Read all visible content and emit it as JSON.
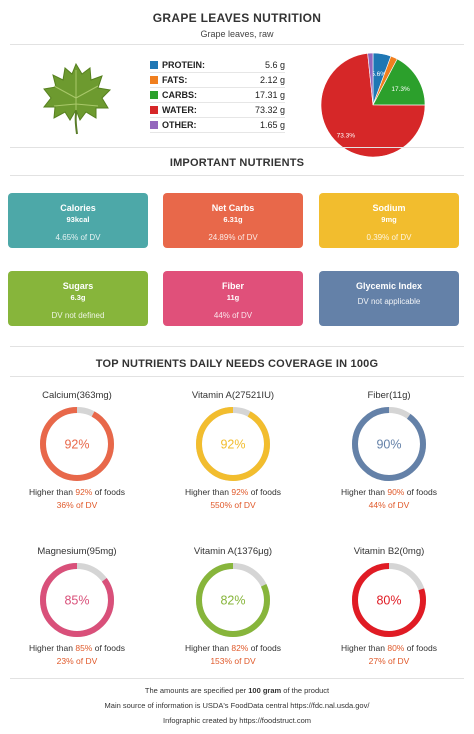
{
  "header": {
    "title": "GRAPE LEAVES NUTRITION",
    "subtitle": "Grape leaves, raw"
  },
  "macros": [
    {
      "name": "PROTEIN:",
      "value": "5.6 g",
      "color": "#1f77b4"
    },
    {
      "name": "FATS:",
      "value": "2.12 g",
      "color": "#f07f1e"
    },
    {
      "name": "CARBS:",
      "value": "17.31 g",
      "color": "#2ca02c"
    },
    {
      "name": "WATER:",
      "value": "73.32 g",
      "color": "#d62728"
    },
    {
      "name": "OTHER:",
      "value": "1.65 g",
      "color": "#9467bd"
    }
  ],
  "chart_data": {
    "type": "pie",
    "slices": [
      {
        "label": "PROTEIN",
        "value": 5.6,
        "color": "#1f77b4",
        "text": "5.6%"
      },
      {
        "label": "FATS",
        "value": 2.12,
        "color": "#f07f1e",
        "text": ""
      },
      {
        "label": "CARBS",
        "value": 17.31,
        "color": "#2ca02c",
        "text": "17.3%"
      },
      {
        "label": "WATER",
        "value": 73.32,
        "color": "#d62728",
        "text": "73.3%"
      },
      {
        "label": "OTHER",
        "value": 1.65,
        "color": "#9467bd",
        "text": ""
      }
    ]
  },
  "important": {
    "title": "IMPORTANT NUTRIENTS",
    "cards": [
      {
        "name": "Calories",
        "value": "93kcal",
        "dv": "4.65% of DV",
        "color": "#4da8a8"
      },
      {
        "name": "Net Carbs",
        "value": "6.31g",
        "dv": "24.89% of DV",
        "color": "#e8684a"
      },
      {
        "name": "Sodium",
        "value": "9mg",
        "dv": "0.39% of DV",
        "color": "#f2bd2e"
      },
      {
        "name": "Sugars",
        "value": "6.3g",
        "dv": "DV not defined",
        "color": "#87b53b"
      },
      {
        "name": "Fiber",
        "value": "11g",
        "dv": "44% of DV",
        "color": "#e0507a"
      },
      {
        "name": "Glycemic Index",
        "value": "",
        "dv": "DV not applicable",
        "color": "#6481a8"
      }
    ]
  },
  "coverage": {
    "title": "TOP NUTRIENTS DAILY NEEDS COVERAGE IN 100G",
    "higher_prefix": "Higher than ",
    "higher_suffix": " of foods",
    "dv_suffix": " of DV",
    "items": [
      {
        "label": "Calcium(363mg)",
        "percent": 92,
        "percent_text": "92%",
        "dv": "36%",
        "color": "#e8684a"
      },
      {
        "label": "Vitamin A(27521IU)",
        "percent": 92,
        "percent_text": "92%",
        "dv": "550%",
        "color": "#f2bd2e"
      },
      {
        "label": "Fiber(11g)",
        "percent": 90,
        "percent_text": "90%",
        "dv": "44%",
        "color": "#6481a8"
      },
      {
        "label": "Magnesium(95mg)",
        "percent": 85,
        "percent_text": "85%",
        "dv": "23%",
        "color": "#d9507a"
      },
      {
        "label": "Vitamin A(1376μg)",
        "percent": 82,
        "percent_text": "82%",
        "dv": "153%",
        "color": "#87b53b"
      },
      {
        "label": "Vitamin B2(0mg)",
        "percent": 80,
        "percent_text": "80%",
        "dv": "27%",
        "color": "#e01b24"
      }
    ]
  },
  "footer": {
    "line1_prefix": "The amounts are specified per ",
    "line1_bold": "100 gram",
    "line1_suffix": " of the product",
    "line2": "Main source of information is USDA's FoodData central https://fdc.nal.usda.gov/",
    "line3": "Infographic created by https://foodstruct.com"
  }
}
